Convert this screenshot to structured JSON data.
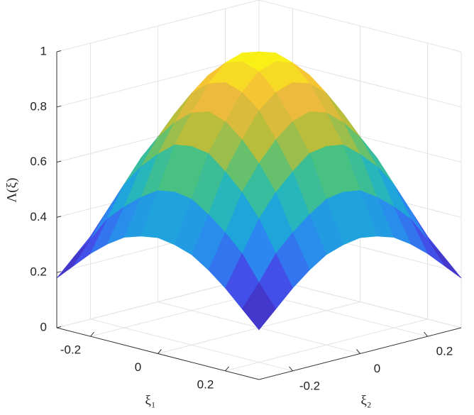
{
  "chart_data": {
    "type": "surface",
    "xlabel": "ξ₁",
    "ylabel": "ξ₂",
    "zlabel": "Λ(ξ)",
    "x": [
      -0.3,
      -0.25,
      -0.2,
      -0.15,
      -0.1,
      -0.05,
      0,
      0.05,
      0.1,
      0.15,
      0.2,
      0.25,
      0.3
    ],
    "y": [
      -0.3,
      -0.25,
      -0.2,
      -0.15,
      -0.1,
      -0.05,
      0,
      0.05,
      0.1,
      0.15,
      0.2,
      0.25,
      0.3
    ],
    "z": [
      [
        0.18,
        0.24,
        0.3,
        0.35,
        0.39,
        0.41,
        0.42,
        0.41,
        0.39,
        0.35,
        0.3,
        0.24,
        0.18
      ],
      [
        0.24,
        0.32,
        0.41,
        0.47,
        0.52,
        0.56,
        0.57,
        0.56,
        0.52,
        0.47,
        0.41,
        0.32,
        0.24
      ],
      [
        0.3,
        0.41,
        0.52,
        0.6,
        0.66,
        0.71,
        0.72,
        0.71,
        0.66,
        0.6,
        0.52,
        0.41,
        0.3
      ],
      [
        0.35,
        0.47,
        0.6,
        0.69,
        0.76,
        0.81,
        0.83,
        0.81,
        0.76,
        0.69,
        0.6,
        0.47,
        0.35
      ],
      [
        0.39,
        0.52,
        0.66,
        0.76,
        0.85,
        0.9,
        0.92,
        0.9,
        0.85,
        0.76,
        0.66,
        0.52,
        0.39
      ],
      [
        0.41,
        0.56,
        0.71,
        0.81,
        0.9,
        0.96,
        0.98,
        0.96,
        0.9,
        0.81,
        0.71,
        0.56,
        0.41
      ],
      [
        0.42,
        0.57,
        0.72,
        0.83,
        0.92,
        0.98,
        1,
        0.98,
        0.92,
        0.83,
        0.72,
        0.57,
        0.42
      ],
      [
        0.41,
        0.56,
        0.71,
        0.81,
        0.9,
        0.96,
        0.98,
        0.96,
        0.9,
        0.81,
        0.71,
        0.56,
        0.41
      ],
      [
        0.39,
        0.52,
        0.66,
        0.76,
        0.85,
        0.9,
        0.92,
        0.9,
        0.85,
        0.76,
        0.66,
        0.52,
        0.39
      ],
      [
        0.35,
        0.47,
        0.6,
        0.69,
        0.76,
        0.81,
        0.83,
        0.81,
        0.76,
        0.69,
        0.6,
        0.47,
        0.35
      ],
      [
        0.3,
        0.41,
        0.52,
        0.6,
        0.66,
        0.71,
        0.72,
        0.71,
        0.66,
        0.6,
        0.52,
        0.41,
        0.3
      ],
      [
        0.24,
        0.32,
        0.41,
        0.47,
        0.52,
        0.56,
        0.57,
        0.56,
        0.52,
        0.47,
        0.41,
        0.32,
        0.24
      ],
      [
        0.18,
        0.24,
        0.3,
        0.35,
        0.39,
        0.41,
        0.42,
        0.41,
        0.39,
        0.35,
        0.3,
        0.24,
        0.18
      ]
    ],
    "xlim": [
      -0.3,
      0.3
    ],
    "ylim": [
      -0.3,
      0.3
    ],
    "zlim": [
      0,
      1
    ],
    "xticks": [
      -0.2,
      0,
      0.2
    ],
    "yticks": [
      -0.2,
      0,
      0.2
    ],
    "zticks": [
      0,
      0.2,
      0.4,
      0.6,
      0.8,
      1
    ],
    "grid": true,
    "colormap": [
      "#3e26a8",
      "#4745e8",
      "#2c87f0",
      "#19b2d2",
      "#4cc27c",
      "#b9bd3c",
      "#f5ba3c",
      "#f9fb0e"
    ]
  }
}
